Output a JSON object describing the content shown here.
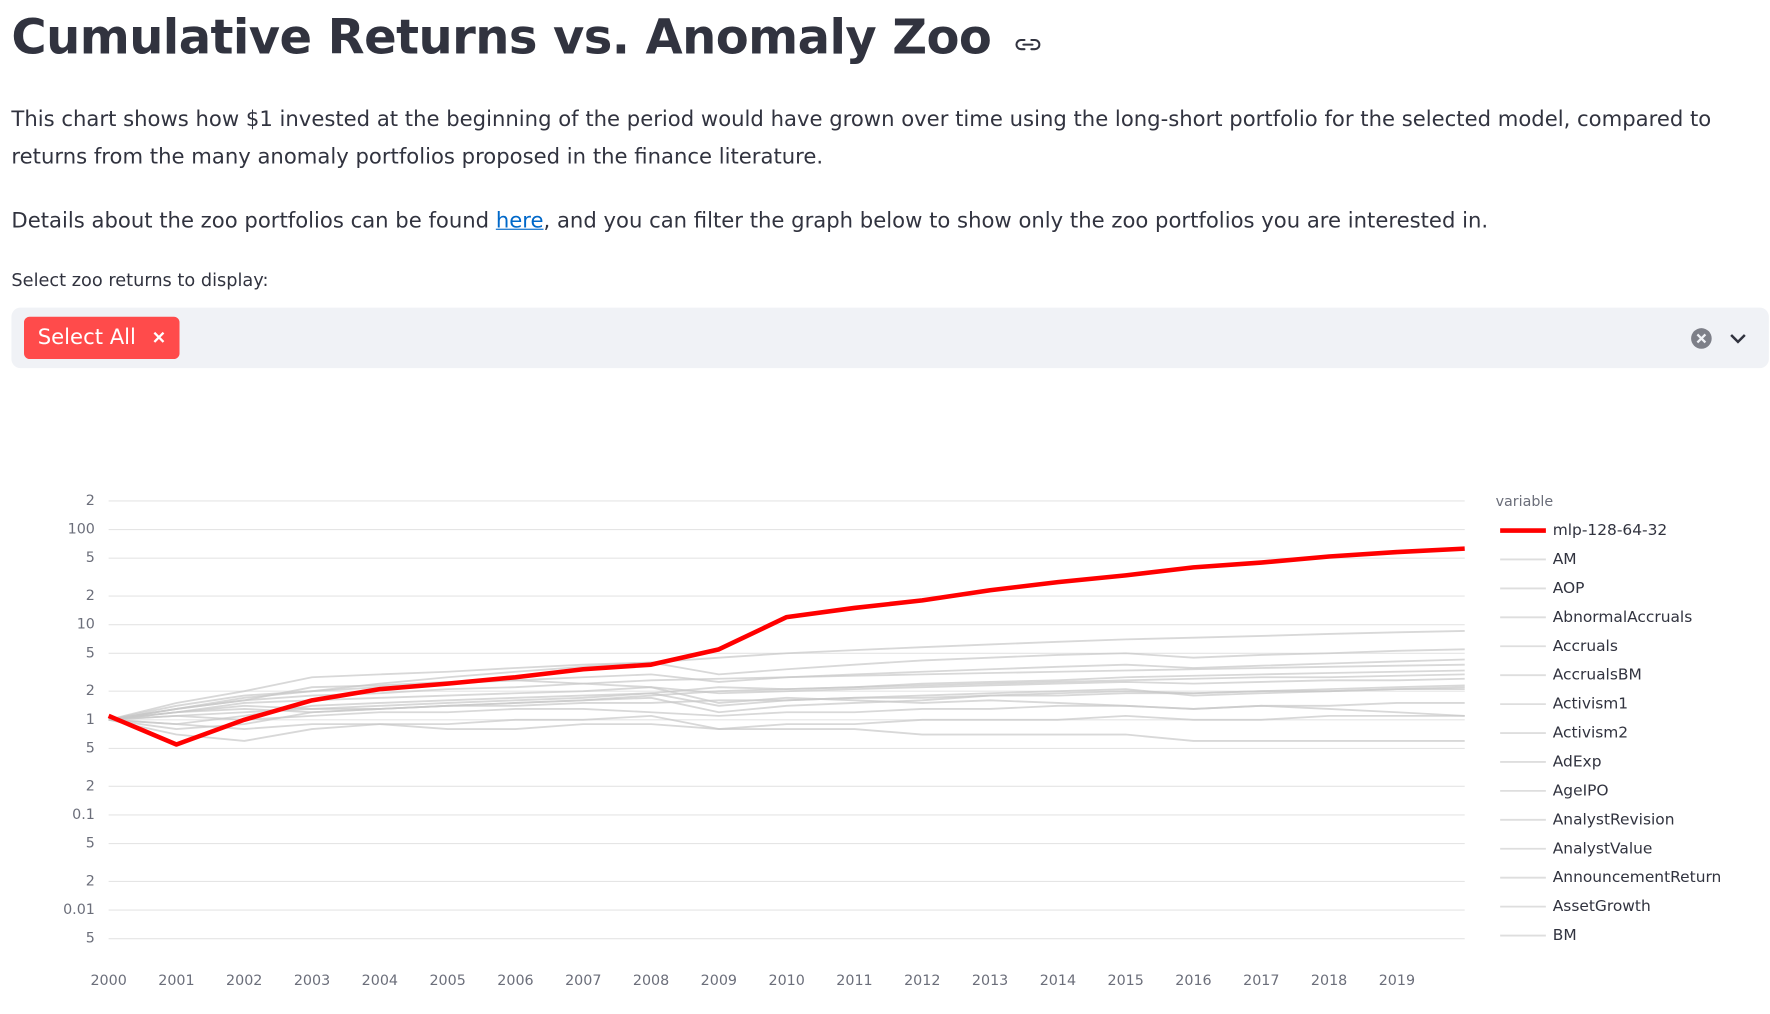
{
  "header": {
    "title": "Cumulative Returns vs. Anomaly Zoo"
  },
  "paragraphs": [
    "This chart shows how $1 invested at the beginning of the period would have grown over time using the long-short portfolio for the selected model, compared to returns from the many anomaly portfolios proposed in the finance literature."
  ],
  "details": {
    "before": "Details about the zoo portfolios can be found ",
    "link": "here",
    "after": ", and you can filter the graph below to show only the zoo portfolios you are interested in."
  },
  "select": {
    "label": "Select zoo returns to display:",
    "chips": [
      "Select All"
    ]
  },
  "chart_data": {
    "type": "line",
    "log_y": true,
    "legend_title": "variable",
    "legend": "right",
    "grid": true,
    "x": [
      2000,
      2001,
      2002,
      2003,
      2004,
      2005,
      2006,
      2007,
      2008,
      2009,
      2010,
      2011,
      2012,
      2013,
      2014,
      2015,
      2016,
      2017,
      2018,
      2019,
      2020
    ],
    "xlim": [
      2000,
      2020
    ],
    "xticks": [
      2000,
      2001,
      2002,
      2003,
      2004,
      2005,
      2006,
      2007,
      2008,
      2009,
      2010,
      2011,
      2012,
      2013,
      2014,
      2015,
      2016,
      2017,
      2018,
      2019
    ],
    "ylim": [
      0.004,
      250
    ],
    "yticks": [
      {
        "value": 200,
        "label": "2"
      },
      100,
      {
        "value": 50,
        "label": "5"
      },
      {
        "value": 20,
        "label": "2"
      },
      10,
      5,
      2,
      1,
      {
        "value": 0.5,
        "label": "5"
      },
      {
        "value": 0.2,
        "label": "2"
      },
      0.1,
      {
        "value": 0.05,
        "label": "5"
      },
      {
        "value": 0.02,
        "label": "2"
      },
      0.01,
      {
        "value": 0.005,
        "label": "5"
      }
    ],
    "series": [
      {
        "name": "mlp-128-64-32",
        "color": "#ff0000",
        "values": [
          1.1,
          0.55,
          1.0,
          1.6,
          2.1,
          2.4,
          2.8,
          3.4,
          3.8,
          5.5,
          12,
          15,
          18,
          23,
          28,
          33,
          40,
          45,
          52,
          58,
          63
        ]
      },
      {
        "name": "AM",
        "color": "#c8c8c8",
        "values": [
          1,
          0.9,
          1.1,
          1.4,
          1.5,
          1.6,
          1.7,
          1.8,
          1.9,
          1.4,
          1.6,
          1.7,
          1.8,
          1.9,
          2,
          2.1,
          1.8,
          1.9,
          2,
          2.1,
          2.2
        ]
      },
      {
        "name": "AOP",
        "color": "#c8c8c8",
        "values": [
          1,
          1.2,
          1.3,
          1.2,
          1.3,
          1.4,
          1.5,
          1.6,
          1.8,
          2,
          2.1,
          2.2,
          2.4,
          2.5,
          2.6,
          2.8,
          2.9,
          3,
          3.1,
          3.2,
          3.3
        ]
      },
      {
        "name": "AbnormalAccruals",
        "color": "#c8c8c8",
        "values": [
          1,
          1.1,
          1.2,
          1.3,
          1.3,
          1.4,
          1.4,
          1.5,
          1.5,
          1.6,
          1.6,
          1.7,
          1.7,
          1.8,
          1.8,
          1.9,
          1.9,
          2,
          2,
          2.1,
          2.1
        ]
      },
      {
        "name": "Accruals",
        "color": "#c8c8c8",
        "values": [
          1,
          1.3,
          1.6,
          1.8,
          1.9,
          2.1,
          2.2,
          2.4,
          2.6,
          2.7,
          2.8,
          2.9,
          3,
          3.1,
          3.2,
          3.3,
          3.4,
          3.5,
          3.6,
          3.7,
          3.8
        ]
      },
      {
        "name": "AccrualsBM",
        "color": "#c8c8c8",
        "values": [
          1,
          1.5,
          2,
          2.8,
          3,
          3.2,
          3.5,
          3.8,
          4,
          3,
          3.4,
          3.8,
          4.2,
          4.5,
          4.8,
          5,
          4.5,
          4.8,
          5,
          5.3,
          5.5
        ]
      },
      {
        "name": "Activism1",
        "color": "#c8c8c8",
        "values": [
          1,
          0.9,
          0.8,
          0.9,
          0.9,
          0.8,
          0.8,
          0.9,
          0.9,
          0.8,
          0.8,
          0.8,
          0.7,
          0.7,
          0.7,
          0.7,
          0.6,
          0.6,
          0.6,
          0.6,
          0.6
        ]
      },
      {
        "name": "Activism2",
        "color": "#c8c8c8",
        "values": [
          1,
          1.1,
          1,
          1.1,
          1.2,
          1.2,
          1.3,
          1.3,
          1.2,
          1.1,
          1.2,
          1.2,
          1.3,
          1.3,
          1.4,
          1.4,
          1.3,
          1.4,
          1.4,
          1.5,
          1.5
        ]
      },
      {
        "name": "AdExp",
        "color": "#c8c8c8",
        "values": [
          1,
          0.8,
          0.9,
          1.2,
          1.3,
          1.4,
          1.5,
          1.6,
          1.7,
          1.2,
          1.4,
          1.5,
          1.6,
          1.8,
          1.9,
          2,
          1.9,
          2,
          2.1,
          2.2,
          2.3
        ]
      },
      {
        "name": "AgeIPO",
        "color": "#c8c8c8",
        "values": [
          1,
          0.7,
          0.6,
          0.8,
          0.9,
          0.9,
          1,
          1,
          1.1,
          0.8,
          0.9,
          0.9,
          1,
          1,
          1,
          1.1,
          1,
          1,
          1.1,
          1.1,
          1.1
        ]
      },
      {
        "name": "AnalystRevision",
        "color": "#c8c8c8",
        "values": [
          1,
          1.2,
          1.4,
          1.3,
          1.4,
          1.5,
          1.6,
          1.7,
          1.9,
          2.2,
          2.1,
          2.2,
          2.3,
          2.4,
          2.5,
          2.6,
          2.7,
          2.8,
          2.8,
          2.9,
          3
        ]
      },
      {
        "name": "AnalystValue",
        "color": "#c8c8c8",
        "values": [
          1,
          1.4,
          1.8,
          2,
          2.2,
          2.4,
          2.6,
          2.8,
          3,
          2.5,
          2.8,
          3,
          3.2,
          3.4,
          3.6,
          3.8,
          3.5,
          3.7,
          3.9,
          4.1,
          4.3
        ]
      },
      {
        "name": "AnnouncementReturn",
        "color": "#c8c8c8",
        "values": [
          1,
          1.3,
          1.7,
          2,
          2.4,
          2.8,
          3.2,
          3.6,
          4,
          4.5,
          5,
          5.4,
          5.8,
          6.2,
          6.6,
          7,
          7.3,
          7.6,
          8,
          8.3,
          8.6
        ]
      },
      {
        "name": "AssetGrowth",
        "color": "#c8c8c8",
        "values": [
          1,
          1.2,
          1.5,
          1.6,
          1.7,
          1.8,
          1.9,
          2,
          2.2,
          1.9,
          2,
          2.1,
          2.2,
          2.3,
          2.4,
          2.5,
          2.4,
          2.5,
          2.6,
          2.6,
          2.7
        ]
      },
      {
        "name": "BM",
        "color": "#c8c8c8",
        "values": [
          1,
          1.3,
          1.6,
          2.2,
          2.3,
          2.5,
          2.6,
          2.4,
          2.2,
          1.5,
          1.7,
          1.6,
          1.5,
          1.6,
          1.5,
          1.4,
          1.3,
          1.4,
          1.3,
          1.2,
          1.1
        ]
      }
    ]
  }
}
